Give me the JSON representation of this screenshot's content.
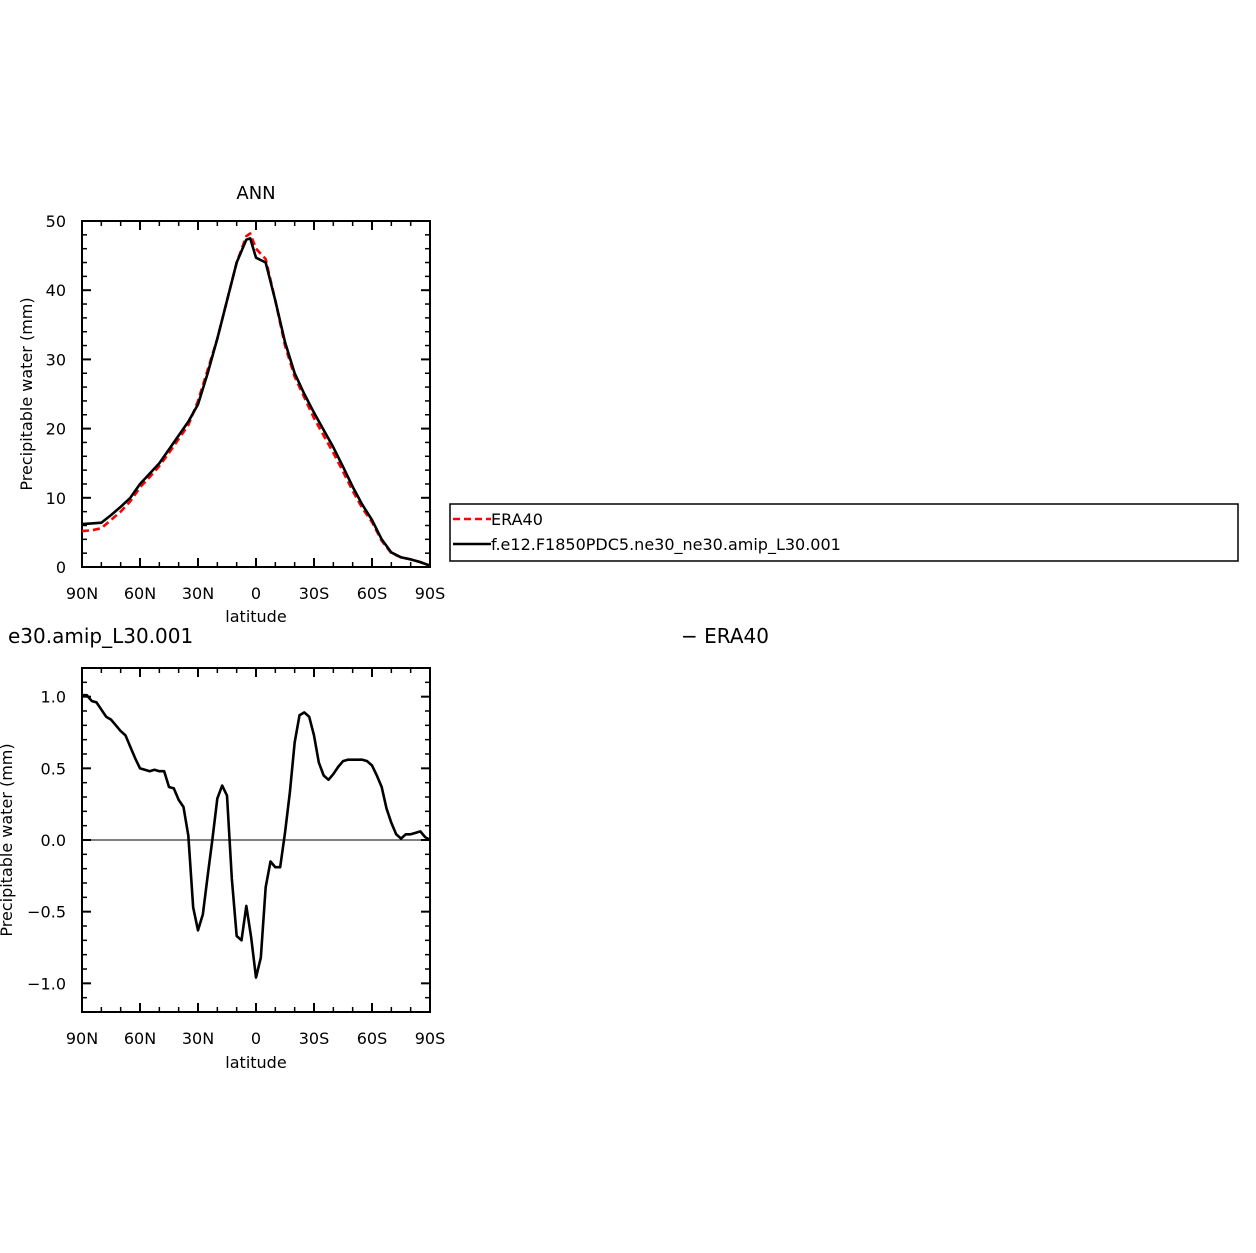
{
  "chart_data": [
    {
      "type": "line",
      "title": "ANN",
      "xlabel": "latitude",
      "ylabel": "Precipitable water (mm)",
      "xlim": [
        90,
        -90
      ],
      "ylim": [
        0,
        50
      ],
      "x_ticks": [
        {
          "value": 90,
          "label": "90N"
        },
        {
          "value": 60,
          "label": "60N"
        },
        {
          "value": 30,
          "label": "30N"
        },
        {
          "value": 0,
          "label": "0"
        },
        {
          "value": -30,
          "label": "30S"
        },
        {
          "value": -60,
          "label": "60S"
        },
        {
          "value": -90,
          "label": "90S"
        }
      ],
      "y_ticks": [
        {
          "value": 0,
          "label": "0"
        },
        {
          "value": 10,
          "label": "10"
        },
        {
          "value": 20,
          "label": "20"
        },
        {
          "value": 30,
          "label": "30"
        },
        {
          "value": 40,
          "label": "40"
        },
        {
          "value": 50,
          "label": "50"
        }
      ],
      "legend": {
        "placement": "right",
        "entries": [
          "ERA40",
          "f.e12.F1850PDC5.ne30_ne30.amip_L30.001"
        ]
      },
      "series": [
        {
          "name": "ERA40",
          "color": "#ff0000",
          "dash": "dashed",
          "x": [
            90,
            85,
            80,
            75,
            70,
            65,
            60,
            55,
            50,
            45,
            40,
            35,
            30,
            25,
            20,
            15,
            10,
            5,
            3,
            0,
            -5,
            -10,
            -15,
            -20,
            -25,
            -30,
            -35,
            -40,
            -45,
            -50,
            -55,
            -60,
            -65,
            -70,
            -75,
            -80,
            -85,
            -90
          ],
          "y": [
            5.2,
            5.3,
            5.6,
            6.8,
            8.0,
            9.5,
            11.5,
            13.0,
            14.6,
            16.5,
            18.5,
            20.5,
            24.0,
            28.5,
            33.0,
            38.5,
            44.0,
            47.8,
            48.2,
            46.0,
            44.5,
            38.5,
            32.0,
            27.5,
            24.5,
            21.5,
            19.0,
            16.5,
            13.8,
            11.0,
            8.5,
            6.5,
            3.8,
            2.0,
            1.4,
            1.1,
            0.7,
            0.2
          ]
        },
        {
          "name": "f.e12.F1850PDC5.ne30_ne30.amip_L30.001",
          "color": "#000000",
          "dash": "solid",
          "x": [
            90,
            85,
            80,
            75,
            70,
            65,
            60,
            55,
            50,
            45,
            40,
            35,
            30,
            25,
            20,
            15,
            10,
            5,
            3,
            0,
            -5,
            -10,
            -15,
            -20,
            -25,
            -30,
            -35,
            -40,
            -45,
            -50,
            -55,
            -60,
            -65,
            -70,
            -75,
            -80,
            -85,
            -90
          ],
          "y": [
            6.2,
            6.3,
            6.4,
            7.5,
            8.7,
            10.0,
            12.0,
            13.5,
            15.0,
            17.0,
            19.0,
            21.0,
            23.5,
            28.0,
            33.0,
            38.5,
            44.0,
            47.3,
            47.5,
            44.7,
            44.0,
            38.5,
            32.5,
            28.0,
            25.0,
            22.3,
            19.8,
            17.3,
            14.5,
            11.6,
            9.0,
            6.8,
            4.0,
            2.1,
            1.4,
            1.1,
            0.7,
            0.2
          ]
        }
      ]
    },
    {
      "type": "line",
      "title": "e30.amip_L30.001",
      "title_right": "− ERA40",
      "xlabel": "latitude",
      "ylabel": "Precipitable water (mm)",
      "xlim": [
        90,
        -90
      ],
      "ylim": [
        -1.2,
        1.2
      ],
      "x_ticks": [
        {
          "value": 90,
          "label": "90N"
        },
        {
          "value": 60,
          "label": "60N"
        },
        {
          "value": 30,
          "label": "30N"
        },
        {
          "value": 0,
          "label": "0"
        },
        {
          "value": -30,
          "label": "30S"
        },
        {
          "value": -60,
          "label": "60S"
        },
        {
          "value": -90,
          "label": "90S"
        }
      ],
      "y_ticks": [
        {
          "value": -1.0,
          "label": "−1.0"
        },
        {
          "value": -0.5,
          "label": "−0.5"
        },
        {
          "value": 0.0,
          "label": "0.0"
        },
        {
          "value": 0.5,
          "label": "0.5"
        },
        {
          "value": 1.0,
          "label": "1.0"
        }
      ],
      "series": [
        {
          "color": "#000000",
          "dash": "solid",
          "x": [
            90,
            87.5,
            85,
            82.5,
            80,
            77.5,
            75,
            72.5,
            70,
            67.5,
            65,
            62.5,
            60,
            57.5,
            55,
            52.5,
            50,
            47.5,
            45,
            42.5,
            40,
            37.5,
            35,
            32.5,
            30,
            27.5,
            25,
            22.5,
            20,
            17.5,
            15,
            12.5,
            10,
            7.5,
            5,
            2.5,
            0,
            -2.5,
            -5,
            -7.5,
            -10,
            -12.5,
            -15,
            -17.5,
            -20,
            -22.5,
            -25,
            -27.5,
            -30,
            -32.5,
            -35,
            -37.5,
            -40,
            -42.5,
            -45,
            -47.5,
            -50,
            -52.5,
            -55,
            -57.5,
            -60,
            -62.5,
            -65,
            -67.5,
            -70,
            -72.5,
            -75,
            -77.5,
            -80,
            -82.5,
            -85,
            -87.5,
            -90
          ],
          "y": [
            1.01,
            1.01,
            0.97,
            0.96,
            0.91,
            0.86,
            0.84,
            0.8,
            0.76,
            0.73,
            0.65,
            0.57,
            0.5,
            0.49,
            0.48,
            0.49,
            0.48,
            0.48,
            0.37,
            0.36,
            0.28,
            0.23,
            0.03,
            -0.47,
            -0.63,
            -0.52,
            -0.25,
            0.01,
            0.29,
            0.38,
            0.31,
            -0.27,
            -0.67,
            -0.7,
            -0.46,
            -0.68,
            -0.96,
            -0.82,
            -0.33,
            -0.15,
            -0.19,
            -0.19,
            0.05,
            0.33,
            0.68,
            0.87,
            0.89,
            0.86,
            0.73,
            0.54,
            0.45,
            0.42,
            0.46,
            0.51,
            0.55,
            0.56,
            0.56,
            0.56,
            0.56,
            0.55,
            0.52,
            0.45,
            0.37,
            0.22,
            0.12,
            0.04,
            0.01,
            0.04,
            0.04,
            0.05,
            0.06,
            0.02,
            0.0
          ]
        }
      ]
    }
  ]
}
